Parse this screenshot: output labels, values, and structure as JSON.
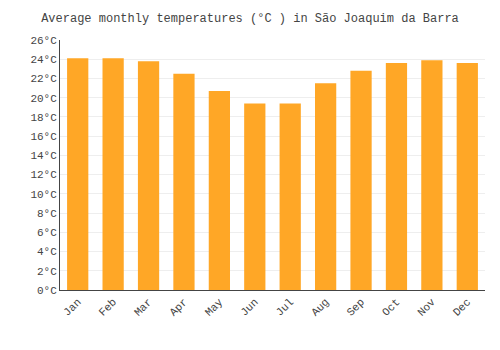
{
  "chart_data": {
    "type": "bar",
    "title": "Average monthly temperatures (°C ) in São Joaquim da Barra",
    "categories": [
      "Jan",
      "Feb",
      "Mar",
      "Apr",
      "May",
      "Jun",
      "Jul",
      "Aug",
      "Sep",
      "Oct",
      "Nov",
      "Dec"
    ],
    "values": [
      24.1,
      24.1,
      23.8,
      22.5,
      20.7,
      19.4,
      19.4,
      21.5,
      22.8,
      23.6,
      23.9,
      23.6
    ],
    "color": "#FFA726",
    "ylim": [
      0,
      26
    ],
    "yticks": [
      {
        "value": 0,
        "label": "0°C"
      },
      {
        "value": 2,
        "label": "2°C"
      },
      {
        "value": 4,
        "label": "4°C"
      },
      {
        "value": 6,
        "label": "6°C"
      },
      {
        "value": 8,
        "label": "8°C"
      },
      {
        "value": 10,
        "label": "10°C"
      },
      {
        "value": 12,
        "label": "12°C"
      },
      {
        "value": 14,
        "label": "14°C"
      },
      {
        "value": 16,
        "label": "16°C"
      },
      {
        "value": 18,
        "label": "18°C"
      },
      {
        "value": 20,
        "label": "20°C"
      },
      {
        "value": 22,
        "label": "22°C"
      },
      {
        "value": 24,
        "label": "24°C"
      },
      {
        "value": 26,
        "label": "26°C"
      }
    ],
    "grid": true
  }
}
